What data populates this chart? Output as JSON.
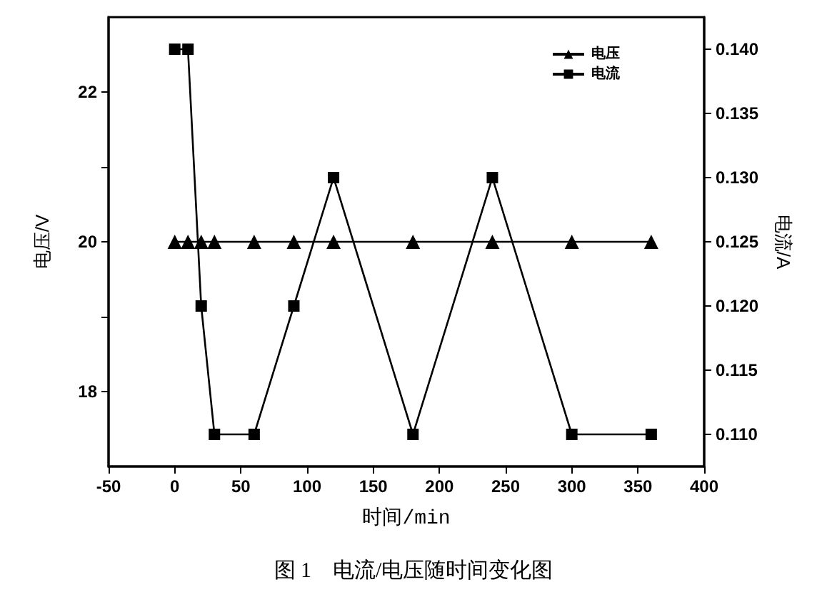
{
  "chart_data": {
    "type": "line",
    "title": "图 1　电流/电压随时间变化图",
    "xlabel": "时间/min",
    "ylabel": "电压/V",
    "y2label": "电流/A",
    "x": [
      0,
      10,
      20,
      30,
      60,
      90,
      120,
      180,
      240,
      300,
      360
    ],
    "series": [
      {
        "name": "电压",
        "color": "#000000",
        "marker": "triangle",
        "values": [
          20,
          20,
          20,
          20,
          20,
          20,
          20,
          20,
          20,
          20,
          20
        ]
      },
      {
        "name": "电流",
        "color": "#000000",
        "marker": "square",
        "axis": "y2",
        "values": [
          0.14,
          0.14,
          0.12,
          0.11,
          0.11,
          0.12,
          0.13,
          0.11,
          0.13,
          0.11,
          0.11
        ]
      }
    ],
    "xlim": [
      -50,
      400
    ],
    "xticks": [
      -50,
      0,
      50,
      100,
      150,
      200,
      250,
      300,
      350,
      400
    ],
    "ylim": [
      17,
      23
    ],
    "yticks": [
      18,
      {
        "value": 19,
        "label": null
      },
      20,
      {
        "value": 21,
        "label": null
      },
      22
    ],
    "y2lim": [
      0.1075,
      0.1425
    ],
    "y2ticks": [
      {
        "value": 0.11,
        "label": "0.110"
      },
      {
        "value": 0.115,
        "label": "0.115"
      },
      {
        "value": 0.12,
        "label": "0.120"
      },
      {
        "value": 0.125,
        "label": "0.125"
      },
      {
        "value": 0.13,
        "label": "0.130"
      },
      {
        "value": 0.135,
        "label": "0.135"
      },
      {
        "value": 0.14,
        "label": "0.140"
      }
    ],
    "grid": false,
    "legend": "top right",
    "line_style": "solid"
  }
}
